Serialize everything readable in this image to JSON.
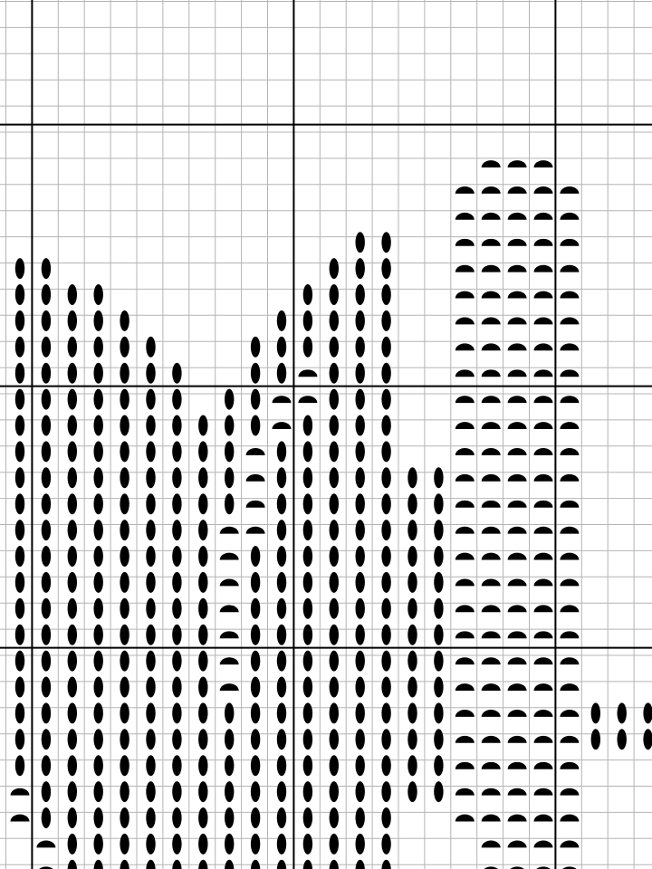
{
  "pattern": {
    "palette": {
      "background": "#ffffff",
      "grid_minor": "#b4b4b4",
      "grid_major": "#000000",
      "symbol": "#000000"
    },
    "symbol_legend": {
      "oval": "vertical-oval-symbol",
      "half": "half-disc-symbol"
    },
    "columns": [
      {
        "col": 0,
        "symbol": "half",
        "from": 29,
        "to": 29
      },
      {
        "col": 0,
        "symbol": "half",
        "from": 30,
        "to": 30
      },
      {
        "col": 0,
        "symbol": "oval",
        "from": 9,
        "to": 28
      },
      {
        "col": 1,
        "symbol": "oval",
        "from": 9,
        "to": 30
      },
      {
        "col": 1,
        "symbol": "half",
        "from": 31,
        "to": 32
      },
      {
        "col": 2,
        "symbol": "oval",
        "from": 10,
        "to": 32
      },
      {
        "col": 3,
        "symbol": "oval",
        "from": 10,
        "to": 32
      },
      {
        "col": 4,
        "symbol": "oval",
        "from": 11,
        "to": 32
      },
      {
        "col": 5,
        "symbol": "oval",
        "from": 12,
        "to": 32
      },
      {
        "col": 6,
        "symbol": "oval",
        "from": 13,
        "to": 32
      },
      {
        "col": 7,
        "symbol": "oval",
        "from": 15,
        "to": 32
      },
      {
        "col": 8,
        "symbol": "oval",
        "from": 14,
        "to": 18
      },
      {
        "col": 8,
        "symbol": "half",
        "from": 19,
        "to": 25
      },
      {
        "col": 8,
        "symbol": "oval",
        "from": 26,
        "to": 32
      },
      {
        "col": 9,
        "symbol": "oval",
        "from": 12,
        "to": 15
      },
      {
        "col": 9,
        "symbol": "half",
        "from": 16,
        "to": 19
      },
      {
        "col": 9,
        "symbol": "oval",
        "from": 20,
        "to": 32
      },
      {
        "col": 10,
        "symbol": "oval",
        "from": 11,
        "to": 13
      },
      {
        "col": 10,
        "symbol": "half",
        "from": 14,
        "to": 15
      },
      {
        "col": 10,
        "symbol": "oval",
        "from": 16,
        "to": 32
      },
      {
        "col": 11,
        "symbol": "oval",
        "from": 10,
        "to": 12
      },
      {
        "col": 11,
        "symbol": "half",
        "from": 13,
        "to": 14
      },
      {
        "col": 11,
        "symbol": "oval",
        "from": 15,
        "to": 32
      },
      {
        "col": 12,
        "symbol": "oval",
        "from": 9,
        "to": 32
      },
      {
        "col": 13,
        "symbol": "oval",
        "from": 8,
        "to": 32
      },
      {
        "col": 14,
        "symbol": "oval",
        "from": 8,
        "to": 32
      },
      {
        "col": 15,
        "symbol": "oval",
        "from": 17,
        "to": 29
      },
      {
        "col": 16,
        "symbol": "oval",
        "from": 17,
        "to": 29
      },
      {
        "col": 17,
        "symbol": "half",
        "from": 6,
        "to": 30
      },
      {
        "col": 18,
        "symbol": "half",
        "from": 5,
        "to": 32
      },
      {
        "col": 19,
        "symbol": "half",
        "from": 5,
        "to": 32
      },
      {
        "col": 20,
        "symbol": "half",
        "from": 5,
        "to": 32
      },
      {
        "col": 21,
        "symbol": "half",
        "from": 6,
        "to": 32
      },
      {
        "col": 22,
        "symbol": "oval",
        "from": 26,
        "to": 27
      },
      {
        "col": 23,
        "symbol": "oval",
        "from": 26,
        "to": 27
      },
      {
        "col": 24,
        "symbol": "oval",
        "from": 26,
        "to": 27
      }
    ]
  }
}
